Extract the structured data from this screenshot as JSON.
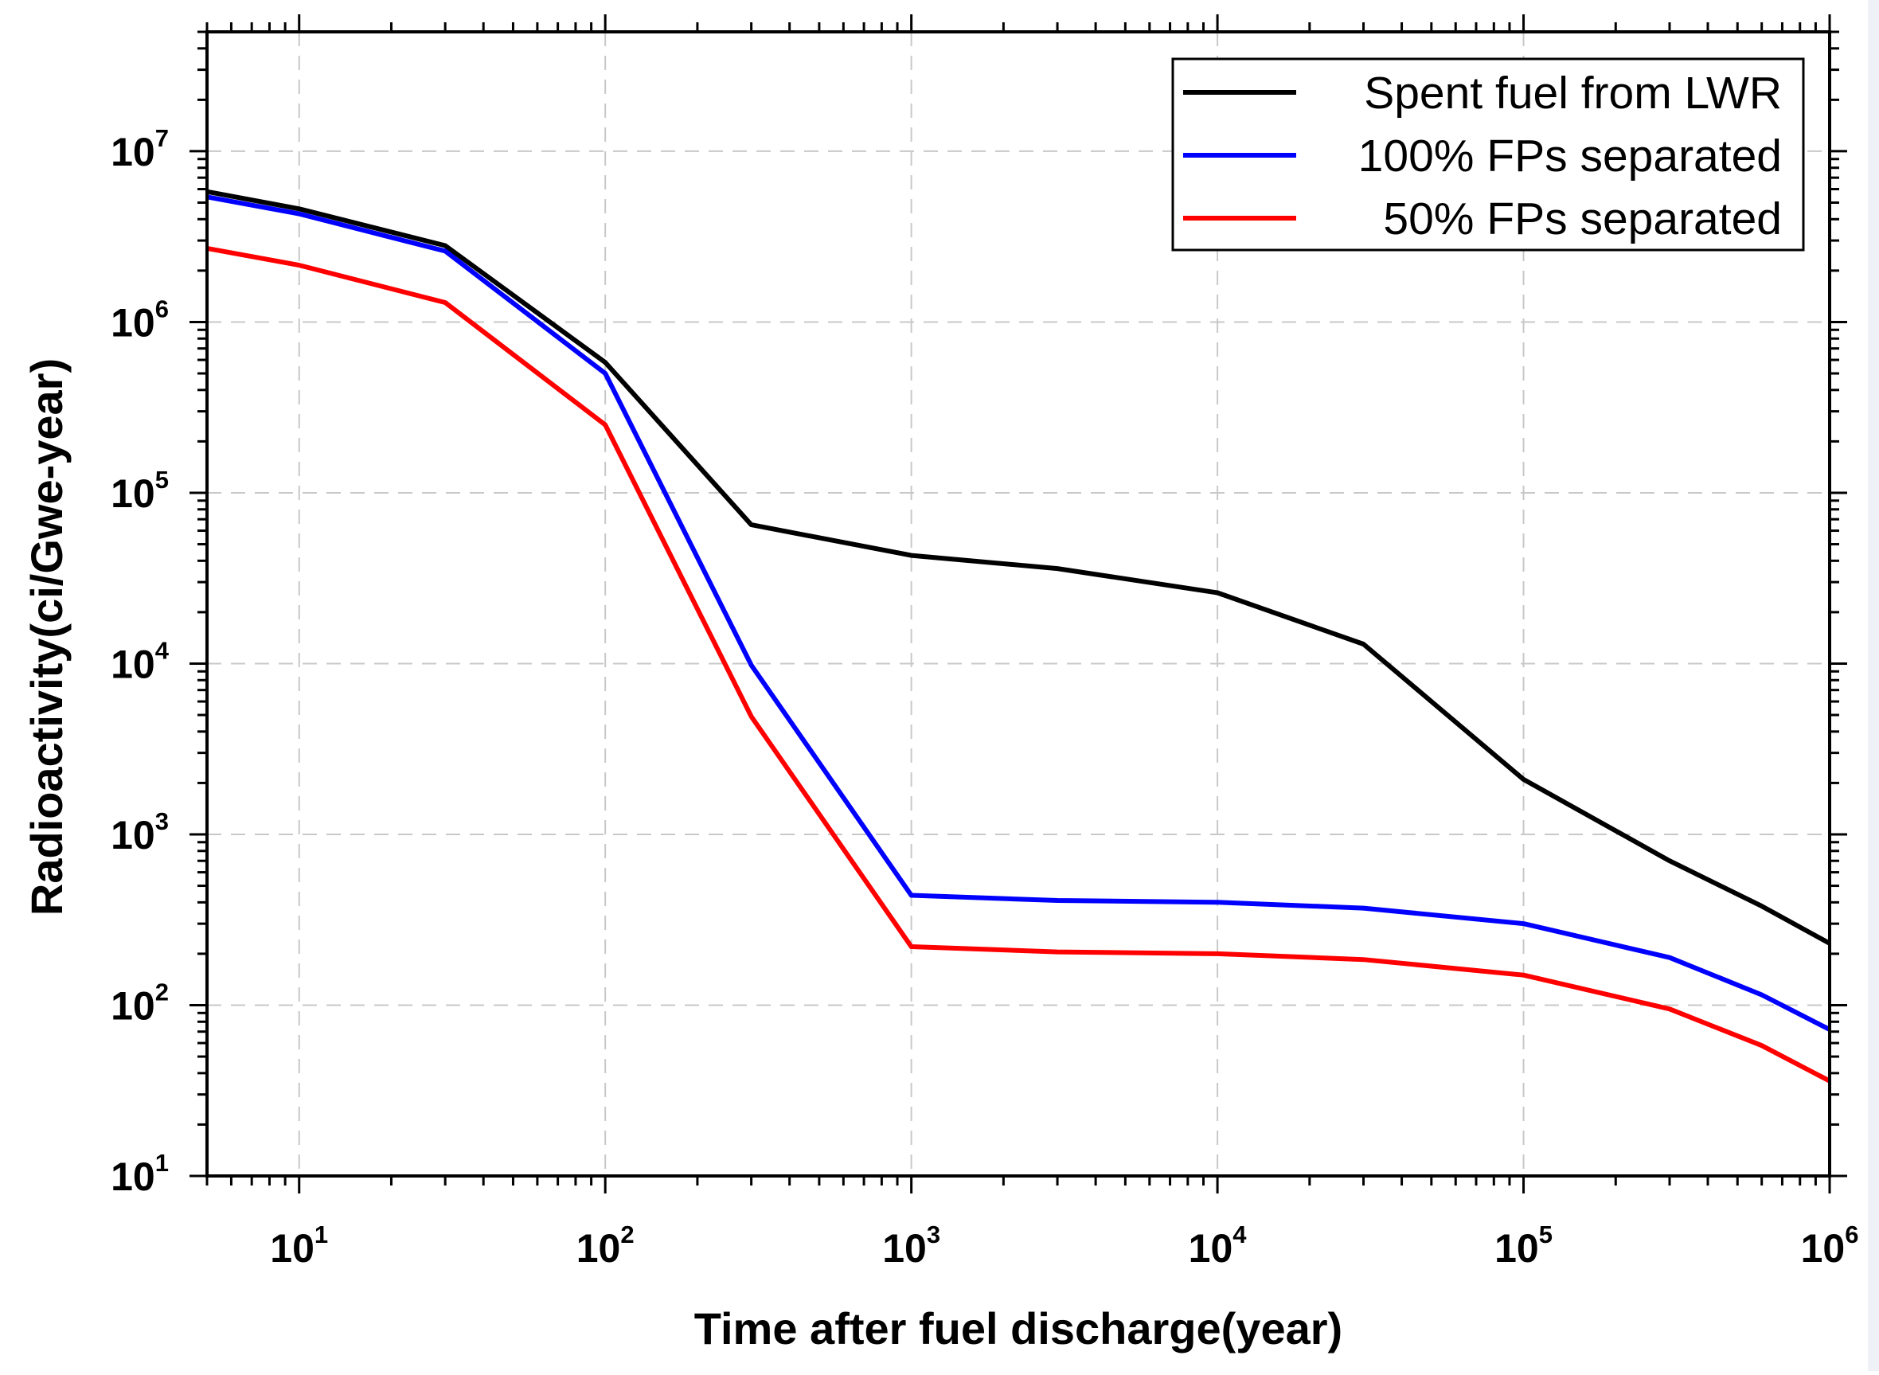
{
  "chart_data": {
    "type": "line",
    "title": "",
    "xlabel": "Time after fuel discharge(year)",
    "ylabel": "Radioactivity(ci/Gwe-year)",
    "xscale": "log",
    "yscale": "log",
    "xlim": [
      5,
      1000000
    ],
    "ylim": [
      10,
      50000000
    ],
    "grid": true,
    "legend_position": "top-right",
    "x_ticks": [
      {
        "value": 10,
        "base": "10",
        "exp": "1"
      },
      {
        "value": 100,
        "base": "10",
        "exp": "2"
      },
      {
        "value": 1000,
        "base": "10",
        "exp": "3"
      },
      {
        "value": 10000,
        "base": "10",
        "exp": "4"
      },
      {
        "value": 100000,
        "base": "10",
        "exp": "5"
      },
      {
        "value": 1000000,
        "base": "10",
        "exp": "6"
      }
    ],
    "y_ticks": [
      {
        "value": 10,
        "base": "10",
        "exp": "1"
      },
      {
        "value": 100,
        "base": "10",
        "exp": "2"
      },
      {
        "value": 1000,
        "base": "10",
        "exp": "3"
      },
      {
        "value": 10000,
        "base": "10",
        "exp": "4"
      },
      {
        "value": 100000,
        "base": "10",
        "exp": "5"
      },
      {
        "value": 1000000,
        "base": "10",
        "exp": "6"
      },
      {
        "value": 10000000,
        "base": "10",
        "exp": "7"
      }
    ],
    "series": [
      {
        "name": "Spent fuel from LWR",
        "color": "#000000",
        "x": [
          5,
          10,
          30,
          100,
          300,
          1000,
          3000,
          10000,
          30000,
          100000,
          300000,
          600000,
          1000000
        ],
        "values": [
          5800000,
          4600000,
          2800000,
          580000,
          65000,
          43000,
          36000,
          26000,
          13000,
          2100,
          700,
          380,
          230
        ]
      },
      {
        "name": "100% FPs separated",
        "color": "#0000ff",
        "x": [
          5,
          10,
          30,
          100,
          300,
          1000,
          3000,
          10000,
          30000,
          100000,
          300000,
          600000,
          1000000
        ],
        "values": [
          5400000,
          4300000,
          2600000,
          500000,
          9800,
          440,
          410,
          400,
          370,
          300,
          190,
          115,
          72
        ]
      },
      {
        "name": "50% FPs separated",
        "color": "#ff0000",
        "x": [
          5,
          10,
          30,
          100,
          300,
          1000,
          3000,
          10000,
          30000,
          100000,
          300000,
          600000,
          1000000
        ],
        "values": [
          2700000,
          2150000,
          1300000,
          250000,
          4900,
          220,
          205,
          200,
          185,
          150,
          95,
          58,
          36
        ]
      }
    ]
  }
}
